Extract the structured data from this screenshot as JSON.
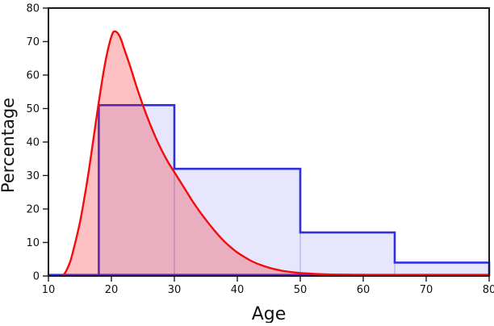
{
  "figure": {
    "xlabel": "Age",
    "ylabel": "Percentage",
    "background": "#ffffff",
    "axis_color": "#1a1a1a",
    "tick_label_color": "#111111"
  },
  "chart_data": {
    "type": "mixed",
    "subtype": [
      "step-filled-histogram",
      "kde-area-line"
    ],
    "title": "",
    "xlabel": "Age",
    "ylabel": "Percentage",
    "xlim": [
      10,
      80
    ],
    "ylim": [
      0,
      80
    ],
    "xticks": [
      10,
      20,
      30,
      40,
      50,
      60,
      70,
      80
    ],
    "yticks": [
      0,
      10,
      20,
      30,
      40,
      50,
      60,
      70,
      80
    ],
    "grid": false,
    "legend": null,
    "series": [
      {
        "name": "age-histogram-percentage",
        "type": "step-filled-histogram",
        "edge_color": "#3030e2",
        "fill_color": "rgba(60,60,230,0.13)",
        "boundary_line_color": "rgba(80,80,215,0.30)",
        "bins": [
          {
            "from": 18,
            "to": 30,
            "value": 51
          },
          {
            "from": 30,
            "to": 50,
            "value": 32
          },
          {
            "from": 50,
            "to": 65,
            "value": 13
          },
          {
            "from": 65,
            "to": 80,
            "value": 4
          }
        ]
      },
      {
        "name": "age-density-curve",
        "type": "area-line",
        "line_color": "#f40b0b",
        "fill_color": "rgba(246,15,25,0.26)",
        "peak": {
          "x": 20.4,
          "y": 73
        },
        "points": [
          [
            12.2,
            0
          ],
          [
            12.6,
            0.8
          ],
          [
            13,
            2.2
          ],
          [
            13.5,
            4.5
          ],
          [
            14,
            8
          ],
          [
            14.5,
            11.8
          ],
          [
            15,
            16
          ],
          [
            15.5,
            21
          ],
          [
            16,
            26.5
          ],
          [
            16.5,
            32.5
          ],
          [
            17,
            39
          ],
          [
            17.5,
            45.5
          ],
          [
            18,
            52
          ],
          [
            18.5,
            58
          ],
          [
            19,
            63.5
          ],
          [
            19.5,
            68
          ],
          [
            20,
            71.5
          ],
          [
            20.4,
            73
          ],
          [
            21,
            72.5
          ],
          [
            21.5,
            70.8
          ],
          [
            22,
            68
          ],
          [
            23,
            62.5
          ],
          [
            24,
            56.5
          ],
          [
            25,
            51
          ],
          [
            26,
            46
          ],
          [
            27,
            41.5
          ],
          [
            28,
            37.5
          ],
          [
            29,
            34
          ],
          [
            30,
            31
          ],
          [
            31,
            28
          ],
          [
            32,
            25
          ],
          [
            33,
            22
          ],
          [
            34,
            19.3
          ],
          [
            35,
            16.8
          ],
          [
            36,
            14.4
          ],
          [
            37,
            12.2
          ],
          [
            38,
            10.2
          ],
          [
            39,
            8.5
          ],
          [
            40,
            7
          ],
          [
            41,
            5.8
          ],
          [
            42,
            4.7
          ],
          [
            43,
            3.8
          ],
          [
            44,
            3.1
          ],
          [
            45,
            2.5
          ],
          [
            46,
            2
          ],
          [
            47,
            1.6
          ],
          [
            48,
            1.3
          ],
          [
            49,
            1.05
          ],
          [
            50,
            0.9
          ],
          [
            52,
            0.65
          ],
          [
            54,
            0.5
          ],
          [
            56,
            0.42
          ],
          [
            58,
            0.37
          ],
          [
            60,
            0.33
          ],
          [
            63,
            0.3
          ],
          [
            66,
            0.28
          ],
          [
            70,
            0.26
          ],
          [
            75,
            0.25
          ],
          [
            80,
            0.25
          ]
        ]
      }
    ]
  }
}
